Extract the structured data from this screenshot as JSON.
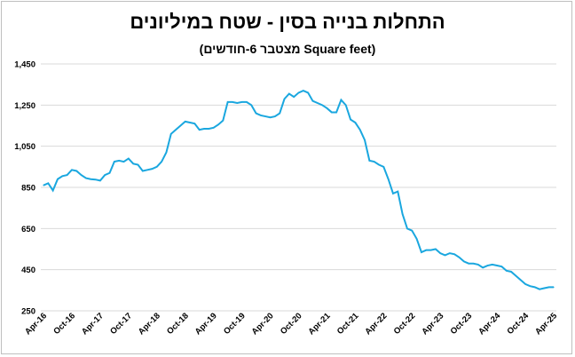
{
  "chart_data": {
    "type": "line",
    "title": "התחלות בנייה בסין - שטח במיליונים",
    "subtitle": "(Square feet מצטבר 6-חודשים)",
    "xlabel": "",
    "ylabel": "",
    "ylim": [
      250,
      1450
    ],
    "yticks": [
      "1,450",
      "1,250",
      "1,050",
      "850",
      "650",
      "450",
      "250"
    ],
    "ytick_values": [
      1450,
      1250,
      1050,
      850,
      650,
      450,
      250
    ],
    "xticks": [
      "Apr-16",
      "Oct-16",
      "Apr-17",
      "Oct-17",
      "Apr-18",
      "Oct-18",
      "Apr-19",
      "Oct-19",
      "Apr-20",
      "Oct-20",
      "Apr-21",
      "Oct-21",
      "Apr-22",
      "Oct-22",
      "Apr-23",
      "Oct-23",
      "Apr-24",
      "Oct-24",
      "Apr-25"
    ],
    "grid": true,
    "line_color": "#1aa7df",
    "series": [
      {
        "x": [
          "2016-04",
          "2016-05",
          "2016-06",
          "2016-07",
          "2016-08",
          "2016-09",
          "2016-10",
          "2016-11",
          "2016-12",
          "2017-01",
          "2017-02",
          "2017-03",
          "2017-04",
          "2017-05",
          "2017-06",
          "2017-07",
          "2017-08",
          "2017-09",
          "2017-10",
          "2017-11",
          "2017-12",
          "2018-01",
          "2018-02",
          "2018-03",
          "2018-04",
          "2018-05",
          "2018-06",
          "2018-07",
          "2018-08",
          "2018-09",
          "2018-10",
          "2018-11",
          "2018-12",
          "2019-01",
          "2019-02",
          "2019-03",
          "2019-04",
          "2019-05",
          "2019-06",
          "2019-07",
          "2019-08",
          "2019-09",
          "2019-10",
          "2019-11",
          "2019-12",
          "2020-01",
          "2020-02",
          "2020-03",
          "2020-04",
          "2020-05",
          "2020-06",
          "2020-07",
          "2020-08",
          "2020-09",
          "2020-10",
          "2020-11",
          "2020-12",
          "2021-01",
          "2021-02",
          "2021-03",
          "2021-04",
          "2021-05",
          "2021-06",
          "2021-07",
          "2021-08",
          "2021-09",
          "2021-10",
          "2021-11",
          "2021-12",
          "2022-01",
          "2022-02",
          "2022-03",
          "2022-04",
          "2022-05",
          "2022-06",
          "2022-07",
          "2022-08",
          "2022-09",
          "2022-10",
          "2022-11",
          "2022-12",
          "2023-01",
          "2023-02",
          "2023-03",
          "2023-04",
          "2023-05",
          "2023-06",
          "2023-07",
          "2023-08",
          "2023-09",
          "2023-10",
          "2023-11",
          "2023-12",
          "2024-01",
          "2024-02",
          "2024-03",
          "2024-04",
          "2024-05",
          "2024-06",
          "2024-07",
          "2024-08",
          "2024-09",
          "2024-10",
          "2024-11",
          "2024-12",
          "2025-01",
          "2025-02",
          "2025-03",
          "2025-04"
        ],
        "values": [
          860,
          870,
          835,
          890,
          905,
          910,
          935,
          930,
          910,
          895,
          890,
          888,
          883,
          910,
          920,
          975,
          980,
          975,
          990,
          965,
          960,
          930,
          935,
          940,
          950,
          975,
          1020,
          1110,
          1130,
          1150,
          1170,
          1165,
          1160,
          1130,
          1135,
          1135,
          1140,
          1155,
          1175,
          1265,
          1265,
          1260,
          1265,
          1265,
          1250,
          1210,
          1200,
          1195,
          1190,
          1195,
          1210,
          1280,
          1305,
          1290,
          1310,
          1320,
          1310,
          1270,
          1260,
          1250,
          1235,
          1215,
          1215,
          1275,
          1250,
          1180,
          1165,
          1130,
          1080,
          980,
          975,
          960,
          950,
          890,
          820,
          830,
          720,
          650,
          640,
          600,
          535,
          545,
          545,
          550,
          530,
          520,
          530,
          525,
          510,
          490,
          480,
          480,
          475,
          460,
          470,
          475,
          470,
          465,
          445,
          440,
          420,
          400,
          380,
          370,
          365,
          355,
          360,
          365,
          365
        ]
      }
    ]
  }
}
